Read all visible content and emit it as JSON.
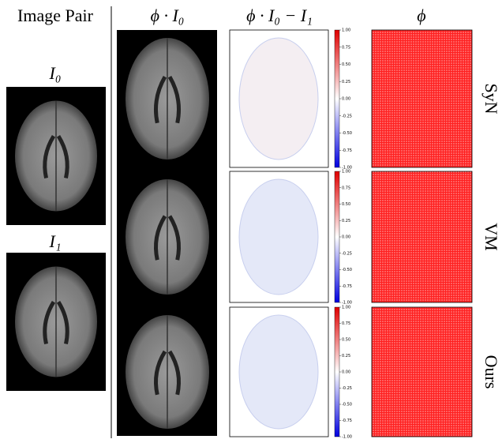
{
  "header": {
    "columns": [
      "Image Pair",
      "ϕ · I₀",
      "ϕ · I₀ − I₁",
      "ϕ"
    ]
  },
  "pair_labels": [
    "I₀",
    "I₁"
  ],
  "rows": [
    "SyN",
    "VM",
    "Ours"
  ],
  "colorbar": {
    "ticks": [
      "1.00",
      "0.75",
      "0.50",
      "0.25",
      "0.00",
      "-0.25",
      "-0.50",
      "-0.75",
      "-1.00"
    ]
  }
}
